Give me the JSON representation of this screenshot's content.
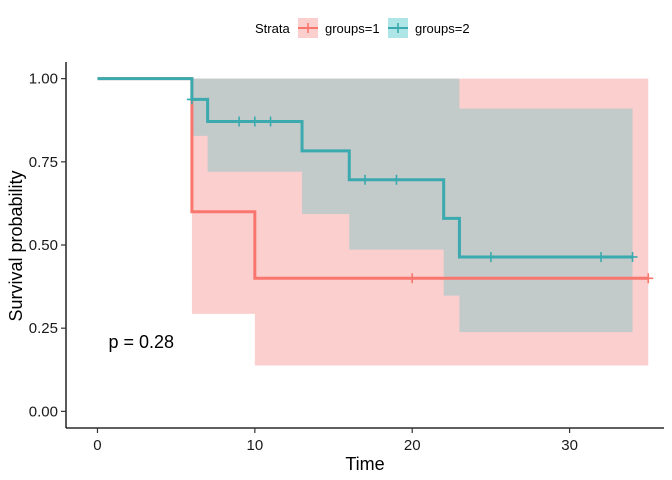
{
  "chart_data": {
    "type": "kaplan-meier",
    "title": "",
    "xlabel": "Time",
    "ylabel": "Survival probability",
    "xlim": [
      -2,
      36
    ],
    "ylim": [
      -0.05,
      1.05
    ],
    "xticks": [
      0,
      10,
      20,
      30
    ],
    "yticks": [
      0.0,
      0.25,
      0.5,
      0.75,
      1.0
    ],
    "ytick_labels": [
      "0.00",
      "0.25",
      "0.50",
      "0.75",
      "1.00"
    ],
    "grid": false,
    "legend": {
      "title": "Strata",
      "position": "top"
    },
    "annotation": "p = 0.28",
    "annotation_pos": [
      0.7,
      0.19
    ],
    "series": [
      {
        "name": "groups=1",
        "color": "#F8766D",
        "fill": "#FCCFCF",
        "steps": [
          [
            0,
            1.0
          ],
          [
            6,
            0.6
          ],
          [
            10,
            0.4
          ],
          [
            35,
            0.4
          ]
        ],
        "ci_upper": [
          [
            6,
            1.0
          ],
          [
            35,
            1.0
          ]
        ],
        "ci_lower": [
          [
            6,
            0.293
          ],
          [
            10,
            0.138
          ],
          [
            35,
            0.138
          ]
        ],
        "censored": [
          [
            20,
            0.4
          ],
          [
            35,
            0.4
          ]
        ]
      },
      {
        "name": "groups=2",
        "color": "#3AAAAF",
        "fill": "#B8C9C9",
        "steps": [
          [
            0,
            1.0
          ],
          [
            6,
            0.9375
          ],
          [
            7,
            0.871
          ],
          [
            13,
            0.783
          ],
          [
            16,
            0.696
          ],
          [
            22,
            0.58
          ],
          [
            23,
            0.464
          ],
          [
            34,
            0.464
          ]
        ],
        "ci_upper": [
          [
            6,
            1.0
          ],
          [
            22,
            1.0
          ],
          [
            23,
            0.91
          ],
          [
            34,
            0.91
          ]
        ],
        "ci_lower": [
          [
            6,
            0.828
          ],
          [
            7,
            0.72
          ],
          [
            13,
            0.593
          ],
          [
            16,
            0.486
          ],
          [
            22,
            0.348
          ],
          [
            23,
            0.238
          ],
          [
            34,
            0.238
          ]
        ],
        "censored": [
          [
            6,
            0.9375
          ],
          [
            9,
            0.871
          ],
          [
            10,
            0.871
          ],
          [
            11,
            0.871
          ],
          [
            17,
            0.696
          ],
          [
            19,
            0.696
          ],
          [
            25,
            0.464
          ],
          [
            32,
            0.464
          ],
          [
            34,
            0.464
          ]
        ]
      }
    ]
  }
}
